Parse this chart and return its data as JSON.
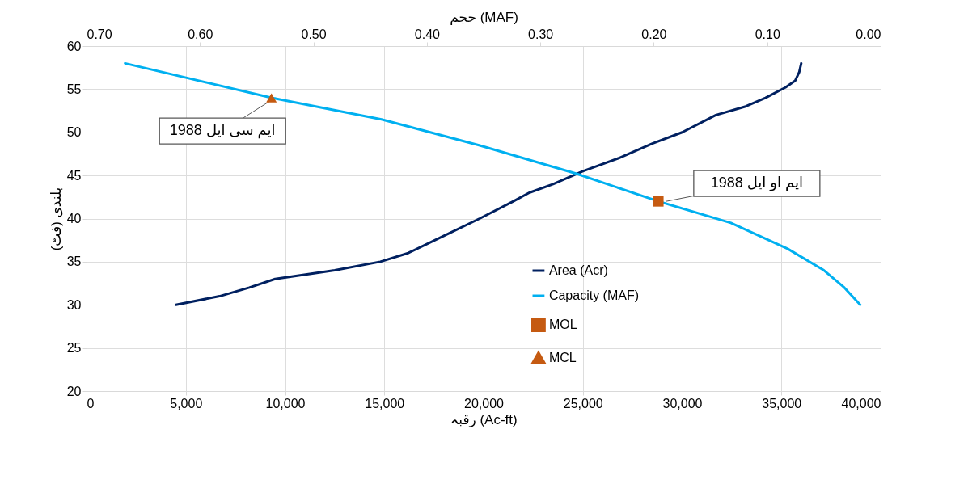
{
  "chart_data": {
    "type": "line",
    "xlabel": "رقبہ (Ac-ft)",
    "x2label": "حجم (MAF)",
    "ylabel": "بلندی (فٹ)",
    "xlim": [
      0,
      40000
    ],
    "xticks": [
      0,
      {
        "value": 5000,
        "label": "5,000"
      },
      {
        "value": 10000,
        "label": "10,000"
      },
      {
        "value": 15000,
        "label": "15,000"
      },
      {
        "value": 20000,
        "label": "20,000"
      },
      {
        "value": 25000,
        "label": "25,000"
      },
      {
        "value": 30000,
        "label": "30,000"
      },
      {
        "value": 35000,
        "label": "35,000"
      },
      {
        "value": 40000,
        "label": "40,000"
      }
    ],
    "x2lim": [
      0.7,
      0
    ],
    "x2ticks": [
      {
        "value": 0.7,
        "label": "0.70"
      },
      {
        "value": 0.6,
        "label": "0.60"
      },
      {
        "value": 0.5,
        "label": "0.50"
      },
      {
        "value": 0.4,
        "label": "0.40"
      },
      {
        "value": 0.3,
        "label": "0.30"
      },
      {
        "value": 0.2,
        "label": "0.20"
      },
      {
        "value": 0.1,
        "label": "0.10"
      },
      {
        "value": 0,
        "label": "0.00"
      }
    ],
    "ylim": [
      20,
      60
    ],
    "yticks": [
      20,
      25,
      30,
      35,
      40,
      45,
      50,
      55,
      60
    ],
    "grid": true,
    "legend": "bottom right",
    "series": [
      {
        "name": "Area (Acr)",
        "type": "line",
        "color": "#002060",
        "marker": "none",
        "x": [
          4500,
          6700,
          8200,
          9500,
          12500,
          14800,
          16200,
          18000,
          19800,
          21500,
          22300,
          23500,
          25000,
          26800,
          28500,
          30000,
          31700,
          33200,
          34200,
          35200,
          35700,
          35900,
          36000
        ],
        "values": [
          30,
          31,
          32,
          33,
          34,
          35,
          36,
          38,
          40,
          42,
          43,
          44,
          45.5,
          47,
          48.7,
          50,
          52,
          53,
          54,
          55.2,
          56,
          57,
          58
        ]
      },
      {
        "name": "Capacity (MAF)",
        "type": "line",
        "axis": "x2",
        "color": "#00b0f0",
        "marker": "none",
        "x": [
          0.666,
          0.537,
          0.44,
          0.354,
          0.268,
          0.196,
          0.132,
          0.082,
          0.05,
          0.032,
          0.018
        ],
        "values": [
          58,
          54,
          51.5,
          48.5,
          45.2,
          42,
          39.5,
          36.5,
          34,
          32,
          30
        ]
      },
      {
        "name": "MOL",
        "type": "scatter",
        "axis": "x2",
        "color": "#c55a11",
        "marker": "square",
        "x": [
          0.196
        ],
        "values": [
          42
        ]
      },
      {
        "name": "MCL",
        "type": "scatter",
        "axis": "x2",
        "color": "#c55a11",
        "marker": "triangle",
        "x": [
          0.537
        ],
        "values": [
          54
        ]
      }
    ],
    "annotations": [
      {
        "text": "ایم سی ایل 1988",
        "x": 9500,
        "y": 54
      },
      {
        "text": "ایم او ایل 1988",
        "x": 29200,
        "y": 42
      }
    ]
  }
}
